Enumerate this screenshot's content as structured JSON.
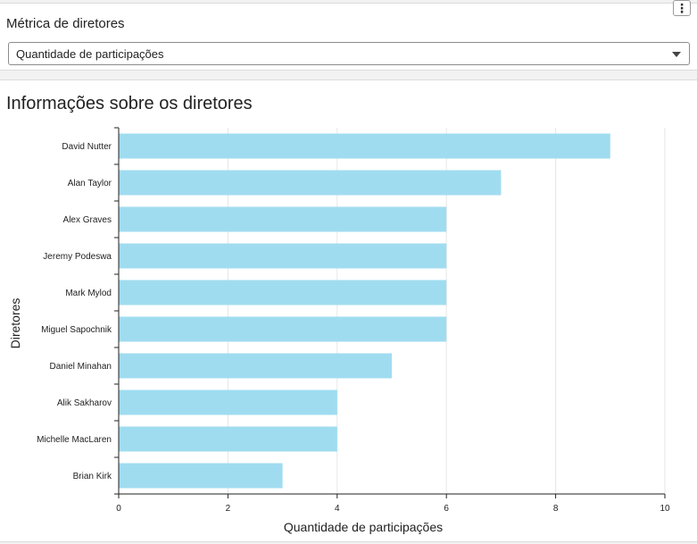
{
  "filter": {
    "label": "Métrica de diretores",
    "selected": "Quantidade de participações",
    "more_icon": "more-vertical-icon"
  },
  "chart_panel": {
    "title": "Informações sobre os diretores"
  },
  "chart_data": {
    "type": "bar",
    "orientation": "horizontal",
    "categories": [
      "David Nutter",
      "Alan Taylor",
      "Alex Graves",
      "Jeremy Podeswa",
      "Mark Mylod",
      "Miguel Sapochnik",
      "Daniel Minahan",
      "Alik Sakharov",
      "Michelle MacLaren",
      "Brian Kirk"
    ],
    "values": [
      9,
      7,
      6,
      6,
      6,
      6,
      5,
      4,
      4,
      3
    ],
    "xlabel": "Quantidade de participações",
    "ylabel": "Diretores",
    "xlim": [
      0,
      10
    ],
    "xticks": [
      "0",
      "2",
      "4",
      "6",
      "8",
      "10"
    ],
    "bar_color": "#a0dcf0",
    "grid": true
  }
}
